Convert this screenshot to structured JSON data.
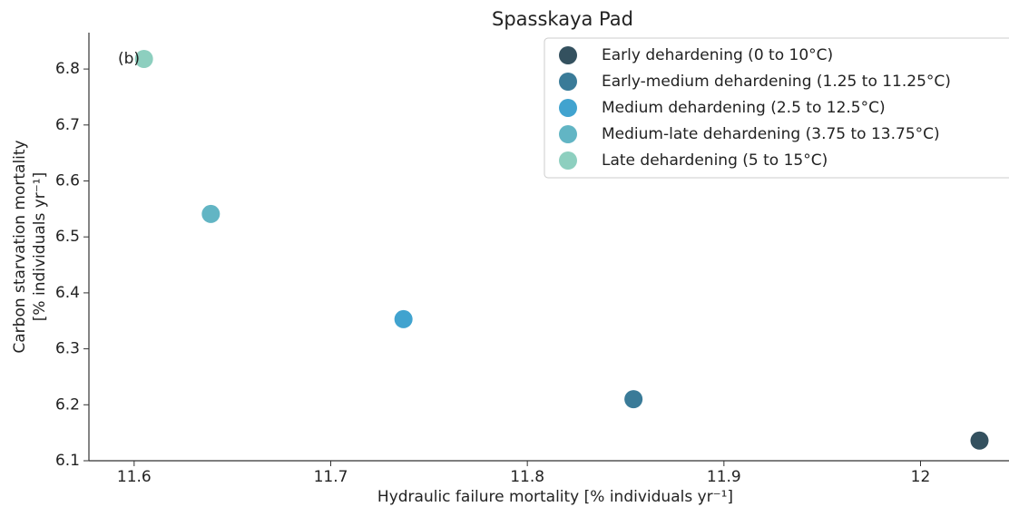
{
  "chart_data": {
    "type": "scatter",
    "title": "Spasskaya Pad",
    "xlabel": "Hydraulic failure mortality [% individuals yr⁻¹]",
    "ylabel": [
      "Carbon starvation mortality",
      "[% individuals yr⁻¹]"
    ],
    "annotation": "(b)",
    "series": [
      {
        "name": "Early dehardening (0 to 10°C)",
        "color": "#34515f",
        "x": [
          12.03
        ],
        "values": [
          6.136
        ]
      },
      {
        "name": "Early-medium dehardening (1.25 to 11.25°C)",
        "color": "#3a7b98",
        "x": [
          11.854
        ],
        "values": [
          6.21
        ]
      },
      {
        "name": "Medium dehardening  (2.5 to 12.5°C)",
        "color": "#41a3cf",
        "x": [
          11.737
        ],
        "values": [
          6.353
        ]
      },
      {
        "name": "Medium-late dehardening (3.75 to 13.75°C)",
        "color": "#62b5c4",
        "x": [
          11.639
        ],
        "values": [
          6.541
        ]
      },
      {
        "name": "Late dehardening (5 to 15°C)",
        "color": "#8dcfbf",
        "x": [
          11.605
        ],
        "values": [
          6.818
        ]
      }
    ],
    "xlim": [
      11.577,
      12.045
    ],
    "xticks": [
      11.6,
      11.7,
      11.8,
      11.9,
      12.0
    ],
    "ylim": [
      6.1,
      6.865
    ],
    "yticks": [
      6.1,
      6.2,
      6.3,
      6.4,
      6.5,
      6.6,
      6.7,
      6.8
    ],
    "grid": false,
    "legend": "upper right"
  }
}
